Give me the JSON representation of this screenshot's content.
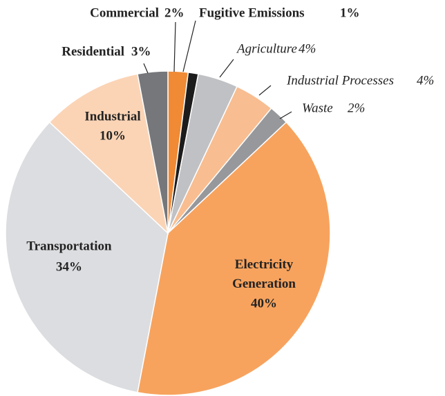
{
  "chart_data": {
    "type": "pie",
    "categories": [
      "Commercial",
      "Fugitive Emissions",
      "Agriculture",
      "Industrial Processes",
      "Waste",
      "Electricity Generation",
      "Transportation",
      "Industrial",
      "Residential"
    ],
    "values": [
      2,
      1,
      4,
      4,
      2,
      40,
      34,
      10,
      3
    ],
    "value_labels": [
      "2%",
      "1%",
      "4%",
      "4%",
      "2%",
      "40%",
      "34%",
      "10%",
      "3%"
    ],
    "colors": [
      "#f08a35",
      "#1c1c1c",
      "#c0c1c4",
      "#f8bd90",
      "#97989b",
      "#f7a35e",
      "#dcdde0",
      "#fbd4b6",
      "#76777a"
    ]
  }
}
